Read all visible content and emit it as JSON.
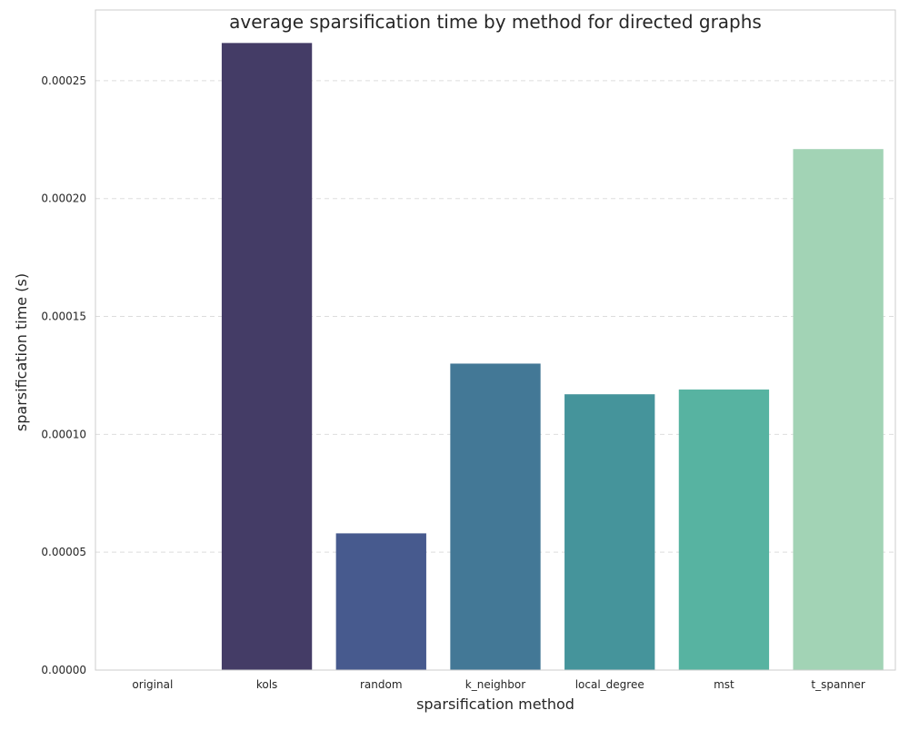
{
  "chart_data": {
    "type": "bar",
    "title": "average sparsification time by method for directed graphs",
    "xlabel": "sparsification method",
    "ylabel": "sparsification time (s)",
    "categories": [
      "original",
      "kols",
      "random",
      "k_neighbor",
      "local_degree",
      "mst",
      "t_spanner"
    ],
    "values": [
      0.0,
      0.000266,
      5.8e-05,
      0.00013,
      0.000117,
      0.000119,
      0.000221
    ],
    "colors": [
      "#2e2d5a",
      "#443c66",
      "#475a8e",
      "#437896",
      "#45949b",
      "#57b3a1",
      "#a2d3b5"
    ],
    "ylim": [
      0,
      0.00028
    ],
    "yticks": [
      0,
      5e-05,
      0.0001,
      0.00015,
      0.0002,
      0.00025
    ],
    "ytick_labels": [
      "0.00000",
      "0.00005",
      "0.00010",
      "0.00015",
      "0.00020",
      "0.00025"
    ],
    "grid": true,
    "grid_axis": "y",
    "legend": false
  }
}
